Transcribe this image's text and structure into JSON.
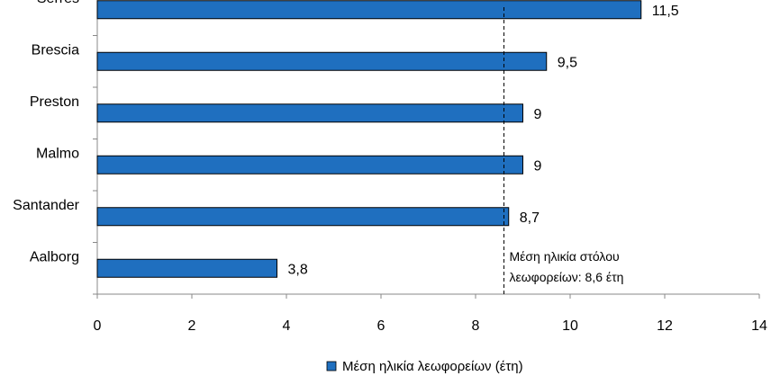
{
  "chart_data": {
    "type": "bar",
    "orientation": "horizontal",
    "categories": [
      "Serres",
      "Brescia",
      "Preston",
      "Malmo",
      "Santander",
      "Aalborg"
    ],
    "series": [
      {
        "name": "Μέση ηλικία λεωφορείων (έτη)",
        "values": [
          11.5,
          9.5,
          9,
          9,
          8.7,
          3.8
        ],
        "value_labels": [
          "11,5",
          "9,5",
          "9",
          "9",
          "8,7",
          "3,8"
        ],
        "color": "#1f6fbf"
      }
    ],
    "xlim": [
      0,
      14
    ],
    "x_ticks": [
      0,
      2,
      4,
      6,
      8,
      10,
      12,
      14
    ],
    "reference_line": {
      "value": 8.6,
      "label_lines": [
        "Μέση ηλικία στόλου",
        "λεωφορείων: 8,6 έτη"
      ],
      "style": "dashed"
    },
    "legend_position": "bottom-center",
    "title": "",
    "xlabel": "",
    "ylabel": ""
  }
}
